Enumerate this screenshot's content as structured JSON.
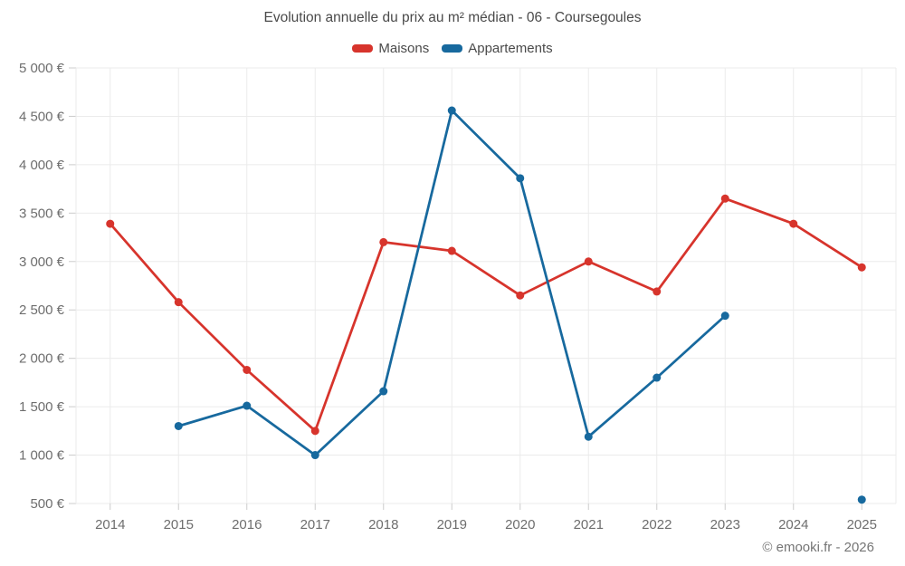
{
  "title": "Evolution annuelle du prix au m² médian - 06 - Coursegoules",
  "footer": "© emooki.fr - 2026",
  "legend": [
    {
      "label": "Maisons",
      "color": "#d7342c"
    },
    {
      "label": "Appartements",
      "color": "#17699e"
    }
  ],
  "colors": {
    "grid": "#ebebeb",
    "tick": "#cccccc",
    "axis_label": "#6e6e6e",
    "title_text": "#4a4a4a",
    "footer_text": "#757575",
    "background": "#ffffff"
  },
  "chart_data": {
    "type": "line",
    "title": "Evolution annuelle du prix au m² médian - 06 - Coursegoules",
    "categories": [
      2014,
      2015,
      2016,
      2017,
      2018,
      2019,
      2020,
      2021,
      2022,
      2023,
      2024,
      2025
    ],
    "series": [
      {
        "name": "Maisons",
        "color": "#d7342c",
        "values": [
          3390,
          2580,
          1880,
          1250,
          3200,
          3110,
          2650,
          3000,
          2690,
          3650,
          3390,
          2940
        ]
      },
      {
        "name": "Appartements",
        "color": "#17699e",
        "values": [
          null,
          1300,
          1510,
          1000,
          1660,
          4560,
          3860,
          1190,
          1800,
          2440,
          null,
          540
        ]
      }
    ],
    "xlabel": "",
    "ylabel": "",
    "ylim": [
      500,
      5000
    ],
    "ytick_step": 500,
    "ytick_suffix": " €",
    "grid": true,
    "legend_position": "top",
    "marker_radius": 4.5,
    "line_width": 2.75
  }
}
